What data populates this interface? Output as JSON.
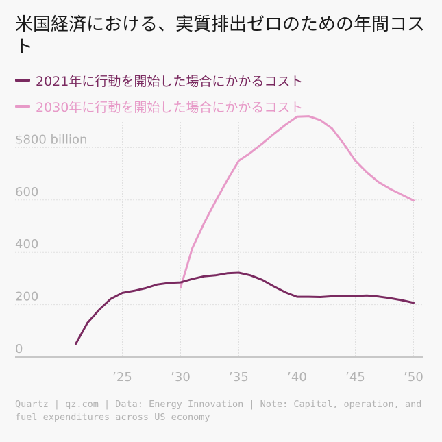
{
  "colors": {
    "background": "#f8f8f8",
    "series_2021": "#7a2a60",
    "series_2030": "#e79ac8",
    "grid": "#e0e0e0",
    "axis": "#999999",
    "tick_text": "#b3b3b3"
  },
  "footer": "Quartz | qz.com | Data: Energy Innovation | Note: Capital, operation, and fuel expenditures across US economy",
  "chart_data": {
    "type": "line",
    "title": "米国経済における、実質排出ゼロのための年間コスト",
    "xlabel": "",
    "ylabel": "",
    "xlim": [
      2020,
      2051
    ],
    "ylim": [
      0,
      900
    ],
    "x_ticks": [
      2025,
      2030,
      2035,
      2040,
      2045,
      2050
    ],
    "x_tick_labels": [
      "’25",
      "’30",
      "’35",
      "’40",
      "’45",
      "’50"
    ],
    "y_ticks": [
      0,
      200,
      400,
      600,
      800
    ],
    "y_tick_labels": [
      "0",
      "200",
      "400",
      "600",
      "$800 billion"
    ],
    "series": [
      {
        "name": "2021年に行動を開始した場合にかかるコスト",
        "color": "#7a2a60",
        "x": [
          2021,
          2022,
          2023,
          2024,
          2025,
          2026,
          2027,
          2028,
          2029,
          2030,
          2031,
          2032,
          2033,
          2034,
          2035,
          2036,
          2037,
          2038,
          2039,
          2040,
          2041,
          2042,
          2043,
          2044,
          2045,
          2046,
          2047,
          2048,
          2049,
          2050
        ],
        "values": [
          50,
          130,
          180,
          222,
          245,
          253,
          263,
          277,
          283,
          285,
          298,
          308,
          312,
          320,
          322,
          312,
          295,
          270,
          247,
          230,
          230,
          229,
          232,
          233,
          233,
          235,
          231,
          225,
          217,
          207
        ]
      },
      {
        "name": "2030年に行動を開始した場合にかかるコスト",
        "color": "#e79ac8",
        "x": [
          2030,
          2031,
          2032,
          2033,
          2034,
          2035,
          2036,
          2037,
          2038,
          2039,
          2040,
          2041,
          2042,
          2043,
          2044,
          2045,
          2046,
          2047,
          2048,
          2049,
          2050
        ],
        "values": [
          265,
          415,
          510,
          595,
          675,
          750,
          780,
          815,
          852,
          887,
          918,
          920,
          905,
          873,
          815,
          750,
          705,
          668,
          642,
          620,
          598
        ]
      }
    ]
  }
}
